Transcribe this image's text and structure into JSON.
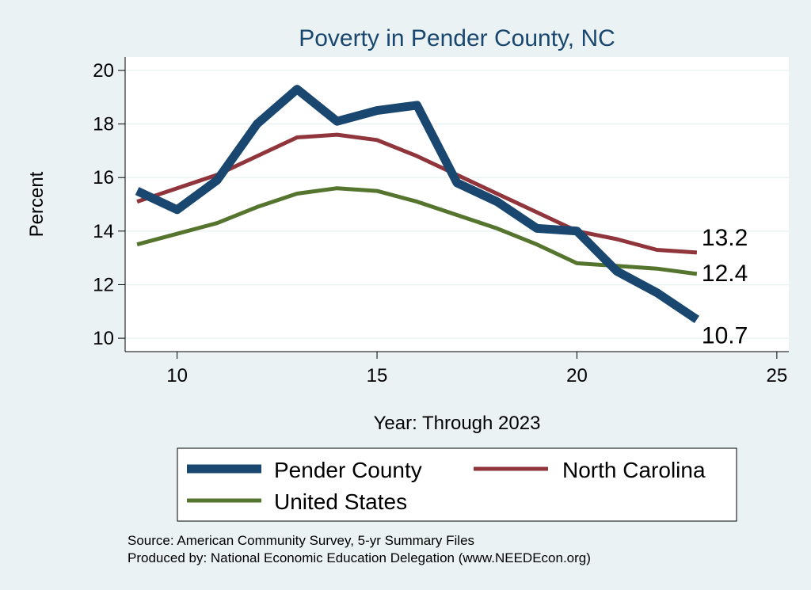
{
  "chart_data": {
    "type": "line",
    "title": "Poverty in Pender County, NC",
    "xlabel": "Year: Through 2023",
    "ylabel": "Percent",
    "xlim": [
      8.7,
      25.3
    ],
    "ylim": [
      9.5,
      20.5
    ],
    "xticks": [
      10,
      15,
      20,
      25
    ],
    "yticks": [
      10,
      12,
      14,
      16,
      18,
      20
    ],
    "grid": true,
    "legend_position": "bottom",
    "x": [
      9,
      10,
      11,
      12,
      13,
      14,
      15,
      16,
      17,
      18,
      19,
      20,
      21,
      22,
      23
    ],
    "series": [
      {
        "name": "Pender County",
        "color": "#1a476f",
        "values": [
          15.5,
          14.8,
          15.9,
          18.0,
          19.3,
          18.1,
          18.5,
          18.7,
          15.8,
          15.1,
          14.1,
          14.0,
          12.5,
          11.7,
          10.7
        ],
        "end_label": "10.7"
      },
      {
        "name": "North Carolina",
        "color": "#90353b",
        "values": [
          15.1,
          15.6,
          16.1,
          16.8,
          17.5,
          17.6,
          17.4,
          16.8,
          16.1,
          15.4,
          14.7,
          14.0,
          13.7,
          13.3,
          13.2
        ],
        "end_label": "13.2"
      },
      {
        "name": "United States",
        "color": "#55752f",
        "values": [
          13.5,
          13.9,
          14.3,
          14.9,
          15.4,
          15.6,
          15.5,
          15.1,
          14.6,
          14.1,
          13.5,
          12.8,
          12.7,
          12.6,
          12.4
        ],
        "end_label": "12.4"
      }
    ],
    "notes": [
      "Source: American Community Survey, 5-yr Summary Files",
      "Produced by: National Economic Education Delegation (www.NEEDEcon.org)"
    ]
  }
}
